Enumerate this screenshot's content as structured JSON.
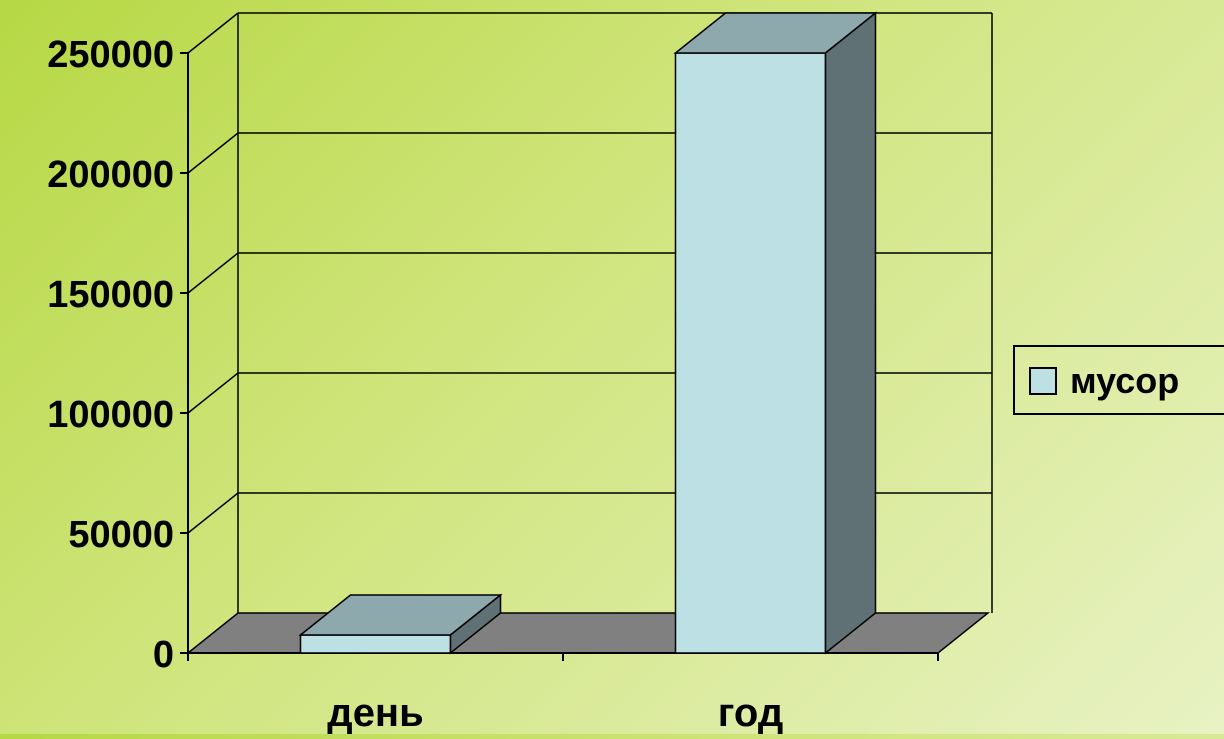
{
  "chart_data": {
    "type": "bar",
    "categories": [
      "день",
      "год"
    ],
    "series": [
      {
        "name": "мусор",
        "values": [
          7500,
          250000
        ]
      }
    ],
    "yticks": [
      "0",
      "50000",
      "100000",
      "150000",
      "200000",
      "250000"
    ],
    "ylim": [
      0,
      250000
    ],
    "grid": true,
    "legend": "right",
    "colors": {
      "bar_front": "#bce0e4",
      "bar_top": "#8ea9ad",
      "bar_side": "#5f7174",
      "floor": "#808080",
      "grid": "#000000"
    }
  }
}
